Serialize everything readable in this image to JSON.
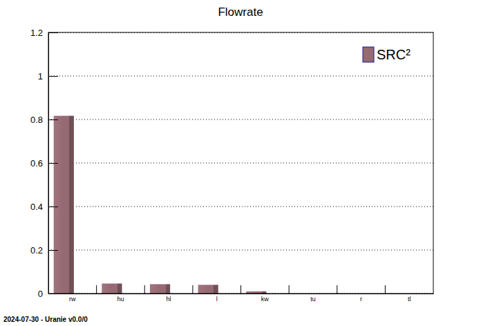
{
  "chart_data": {
    "type": "bar",
    "title": "Flowrate",
    "categories": [
      "rw",
      "hu",
      "hl",
      "l",
      "kw",
      "tu",
      "r",
      "tl"
    ],
    "series": [
      {
        "name": "SRC²",
        "color": "#956a73",
        "values": [
          0.817,
          0.046,
          0.043,
          0.04,
          0.01,
          0,
          0,
          0
        ]
      }
    ],
    "ylim": [
      0,
      1.2
    ],
    "yticks": [
      0,
      0.2,
      0.4,
      0.6,
      0.8,
      1,
      1.2
    ],
    "grid": true,
    "legend": "top-right",
    "annotations": [
      "2024-07-30 - Uranie v0.0/0"
    ]
  }
}
